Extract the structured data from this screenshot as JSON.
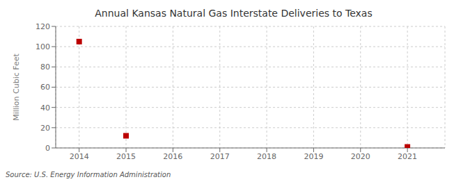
{
  "chart_data": {
    "type": "scatter",
    "title": "Annual Kansas Natural Gas Interstate Deliveries to Texas",
    "ylabel": "Million Cubic Feet",
    "source": "Source: U.S. Energy Information Administration",
    "x": [
      2014,
      2015,
      2021
    ],
    "values": [
      105,
      12,
      1
    ],
    "color": "#bb0000",
    "marker": "square",
    "xlim": [
      2013.5,
      2021.8
    ],
    "xticks": [
      2014,
      2015,
      2016,
      2017,
      2018,
      2019,
      2020,
      2021
    ],
    "ylim": [
      0,
      120
    ],
    "yticks": [
      0,
      20,
      40,
      60,
      80,
      100,
      120
    ],
    "grid": true
  }
}
